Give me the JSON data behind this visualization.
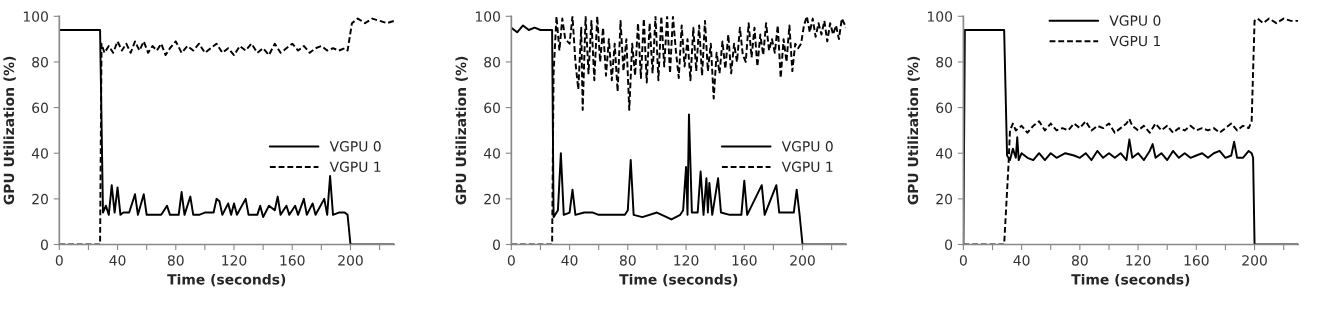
{
  "chart_data": [
    {
      "type": "line",
      "xlabel": "Time (seconds)",
      "ylabel": "GPU Utilization (%)",
      "xlim": [
        0,
        230
      ],
      "ylim": [
        0,
        100
      ],
      "xticks": [
        0,
        {
          "value": 20,
          "label": null
        },
        40,
        {
          "value": 60,
          "label": null
        },
        80,
        {
          "value": 100,
          "label": null
        },
        120,
        {
          "value": 140,
          "label": null
        },
        160,
        {
          "value": 180,
          "label": null
        },
        200,
        {
          "value": 220,
          "label": null
        }
      ],
      "yticks": [
        0,
        20,
        40,
        60,
        80,
        100
      ],
      "grid": false,
      "legend": "right",
      "marker": "none",
      "series": [
        {
          "name": "VGPU 0",
          "color": "#000000",
          "line_style": "solid",
          "x": [
            0,
            28,
            30,
            32,
            34,
            36,
            38,
            40,
            42,
            44,
            48,
            52,
            54,
            58,
            60,
            64,
            70,
            74,
            76,
            82,
            84,
            86,
            90,
            92,
            96,
            100,
            106,
            108,
            110,
            112,
            116,
            118,
            120,
            122,
            128,
            130,
            136,
            138,
            140,
            144,
            148,
            150,
            152,
            156,
            158,
            162,
            164,
            168,
            170,
            174,
            176,
            182,
            184,
            186,
            188,
            192,
            196,
            198,
            200,
            230
          ],
          "values": [
            94,
            94,
            14,
            17,
            13,
            26,
            14,
            25,
            13,
            14,
            14,
            22,
            13,
            22,
            13,
            13,
            13,
            17,
            13,
            13,
            23,
            13,
            21,
            13,
            13,
            14,
            14,
            20,
            19,
            13,
            18,
            13,
            18,
            13,
            20,
            13,
            13,
            17,
            12,
            17,
            15,
            21,
            13,
            17,
            13,
            17,
            13,
            20,
            13,
            18,
            13,
            20,
            13,
            30,
            13,
            14,
            14,
            13,
            0,
            0
          ]
        },
        {
          "name": "VGPU 1",
          "color": "#000000",
          "line_style": "dashed",
          "x": [
            0,
            28,
            29,
            31,
            34,
            37,
            40,
            43,
            46,
            49,
            52,
            55,
            58,
            61,
            64,
            67,
            70,
            73,
            76,
            80,
            84,
            88,
            92,
            96,
            100,
            104,
            108,
            112,
            116,
            120,
            124,
            128,
            132,
            136,
            140,
            144,
            148,
            152,
            156,
            160,
            164,
            168,
            172,
            176,
            180,
            184,
            188,
            192,
            196,
            198,
            201,
            205,
            210,
            215,
            220,
            225,
            230
          ],
          "values": [
            0,
            0,
            88,
            84,
            87,
            84,
            89,
            85,
            88,
            84,
            89,
            85,
            89,
            84,
            87,
            85,
            88,
            83,
            86,
            89,
            84,
            87,
            85,
            88,
            84,
            86,
            88,
            84,
            86,
            83,
            87,
            85,
            88,
            84,
            86,
            83,
            88,
            84,
            86,
            88,
            85,
            87,
            84,
            86,
            87,
            85,
            86,
            85,
            86,
            85,
            97,
            99,
            97,
            99,
            98,
            97,
            98
          ]
        }
      ]
    },
    {
      "type": "line",
      "xlabel": "Time (seconds)",
      "ylabel": "GPU Utilization (%)",
      "xlim": [
        0,
        230
      ],
      "ylim": [
        0,
        100
      ],
      "xticks": [
        0,
        {
          "value": 20,
          "label": null
        },
        40,
        {
          "value": 60,
          "label": null
        },
        80,
        {
          "value": 100,
          "label": null
        },
        120,
        {
          "value": 140,
          "label": null
        },
        160,
        {
          "value": 180,
          "label": null
        },
        200,
        {
          "value": 220,
          "label": null
        }
      ],
      "yticks": [
        0,
        20,
        40,
        60,
        80,
        100
      ],
      "grid": false,
      "legend": "right",
      "marker": "none",
      "series": [
        {
          "name": "VGPU 0",
          "color": "#000000",
          "line_style": "solid",
          "x": [
            0,
            4,
            8,
            12,
            16,
            20,
            28,
            29,
            32,
            34,
            36,
            40,
            42,
            44,
            50,
            56,
            60,
            70,
            78,
            80,
            82,
            84,
            90,
            100,
            110,
            116,
            118,
            120,
            121,
            122,
            124,
            128,
            130,
            132,
            134,
            135,
            136,
            138,
            142,
            144,
            150,
            158,
            160,
            162,
            172,
            174,
            182,
            184,
            194,
            196,
            198,
            200,
            230
          ],
          "values": [
            95,
            93,
            96,
            94,
            95,
            94,
            94,
            12,
            15,
            40,
            13,
            14,
            24,
            13,
            14,
            14,
            13,
            13,
            13,
            15,
            37,
            13,
            12,
            14,
            11,
            13,
            15,
            34,
            13,
            57,
            14,
            14,
            32,
            13,
            29,
            14,
            27,
            13,
            29,
            14,
            13,
            13,
            28,
            13,
            26,
            13,
            26,
            14,
            14,
            24,
            13,
            0,
            0
          ]
        },
        {
          "name": "VGPU 1",
          "color": "#000000",
          "line_style": "dashed",
          "x": [
            0,
            28,
            29,
            31,
            33,
            35,
            37,
            40,
            42,
            44,
            46,
            48,
            49,
            51,
            53,
            55,
            57,
            59,
            61,
            63,
            65,
            67,
            69,
            71,
            73,
            75,
            77,
            79,
            81,
            83,
            85,
            87,
            89,
            91,
            93,
            95,
            97,
            99,
            101,
            103,
            105,
            107,
            109,
            111,
            113,
            115,
            117,
            119,
            121,
            123,
            125,
            127,
            129,
            131,
            133,
            135,
            137,
            139,
            141,
            143,
            145,
            147,
            149,
            151,
            153,
            155,
            157,
            159,
            161,
            163,
            165,
            167,
            169,
            171,
            173,
            175,
            177,
            179,
            181,
            183,
            185,
            187,
            189,
            191,
            193,
            195,
            197,
            199,
            201,
            203,
            205,
            207,
            209,
            211,
            213,
            215,
            217,
            219,
            221,
            223,
            225,
            227,
            230
          ],
          "values": [
            0,
            0,
            75,
            100,
            85,
            99,
            90,
            88,
            100,
            80,
            68,
            95,
            59,
            100,
            75,
            98,
            72,
            100,
            80,
            95,
            74,
            90,
            72,
            88,
            67,
            98,
            76,
            90,
            59,
            88,
            74,
            97,
            73,
            99,
            71,
            97,
            75,
            100,
            72,
            100,
            78,
            100,
            75,
            100,
            85,
            73,
            96,
            78,
            90,
            72,
            95,
            76,
            96,
            74,
            98,
            76,
            88,
            64,
            84,
            75,
            89,
            77,
            92,
            75,
            88,
            80,
            95,
            83,
            80,
            97,
            82,
            95,
            78,
            92,
            83,
            97,
            85,
            90,
            84,
            96,
            73,
            90,
            80,
            96,
            76,
            88,
            86,
            88,
            96,
            100,
            93,
            99,
            91,
            97,
            92,
            98,
            89,
            97,
            92,
            96,
            90,
            99,
            95
          ]
        }
      ]
    },
    {
      "type": "line",
      "xlabel": "Time (seconds)",
      "ylabel": "GPU Utilization (%)",
      "xlim": [
        0,
        230
      ],
      "ylim": [
        0,
        100
      ],
      "xticks": [
        0,
        {
          "value": 20,
          "label": null
        },
        40,
        {
          "value": 60,
          "label": null
        },
        80,
        {
          "value": 100,
          "label": null
        },
        120,
        {
          "value": 140,
          "label": null
        },
        160,
        {
          "value": 180,
          "label": null
        },
        200,
        {
          "value": 220,
          "label": null
        }
      ],
      "yticks": [
        0,
        20,
        40,
        60,
        80,
        100
      ],
      "grid": false,
      "legend": "top",
      "marker": "none",
      "series": [
        {
          "name": "VGPU 0",
          "color": "#000000",
          "line_style": "solid",
          "x": [
            0,
            1,
            28,
            30,
            32,
            34,
            36,
            37,
            38,
            40,
            44,
            48,
            52,
            56,
            60,
            64,
            70,
            76,
            80,
            84,
            88,
            92,
            96,
            100,
            104,
            108,
            112,
            114,
            116,
            120,
            124,
            128,
            130,
            132,
            136,
            140,
            144,
            148,
            152,
            156,
            160,
            164,
            168,
            172,
            176,
            180,
            184,
            186,
            188,
            192,
            196,
            198,
            199,
            200,
            230
          ],
          "values": [
            0,
            94,
            94,
            39,
            37,
            42,
            38,
            47,
            37,
            40,
            38,
            37,
            40,
            37,
            40,
            38,
            40,
            39,
            38,
            40,
            37,
            41,
            38,
            40,
            38,
            40,
            37,
            46,
            38,
            40,
            37,
            41,
            44,
            38,
            40,
            37,
            41,
            38,
            40,
            38,
            39,
            40,
            38,
            40,
            41,
            38,
            39,
            45,
            38,
            38,
            41,
            40,
            38,
            0,
            0
          ]
        },
        {
          "name": "VGPU 1",
          "color": "#000000",
          "line_style": "dashed",
          "x": [
            0,
            28,
            31,
            32,
            34,
            36,
            40,
            44,
            48,
            52,
            56,
            60,
            64,
            68,
            72,
            76,
            80,
            84,
            88,
            92,
            96,
            100,
            104,
            108,
            112,
            114,
            116,
            120,
            124,
            128,
            132,
            136,
            140,
            144,
            148,
            152,
            156,
            160,
            164,
            168,
            172,
            176,
            180,
            184,
            188,
            192,
            196,
            198,
            200,
            202,
            206,
            210,
            215,
            220,
            225,
            230
          ],
          "values": [
            0,
            0,
            35,
            50,
            53,
            50,
            52,
            49,
            52,
            54,
            50,
            53,
            50,
            51,
            50,
            53,
            51,
            54,
            50,
            52,
            51,
            53,
            49,
            51,
            53,
            55,
            52,
            50,
            52,
            49,
            53,
            50,
            52,
            49,
            51,
            50,
            52,
            50,
            51,
            50,
            51,
            49,
            51,
            53,
            50,
            52,
            51,
            54,
            98,
            99,
            97,
            99,
            97,
            99,
            98,
            98
          ]
        }
      ]
    }
  ]
}
